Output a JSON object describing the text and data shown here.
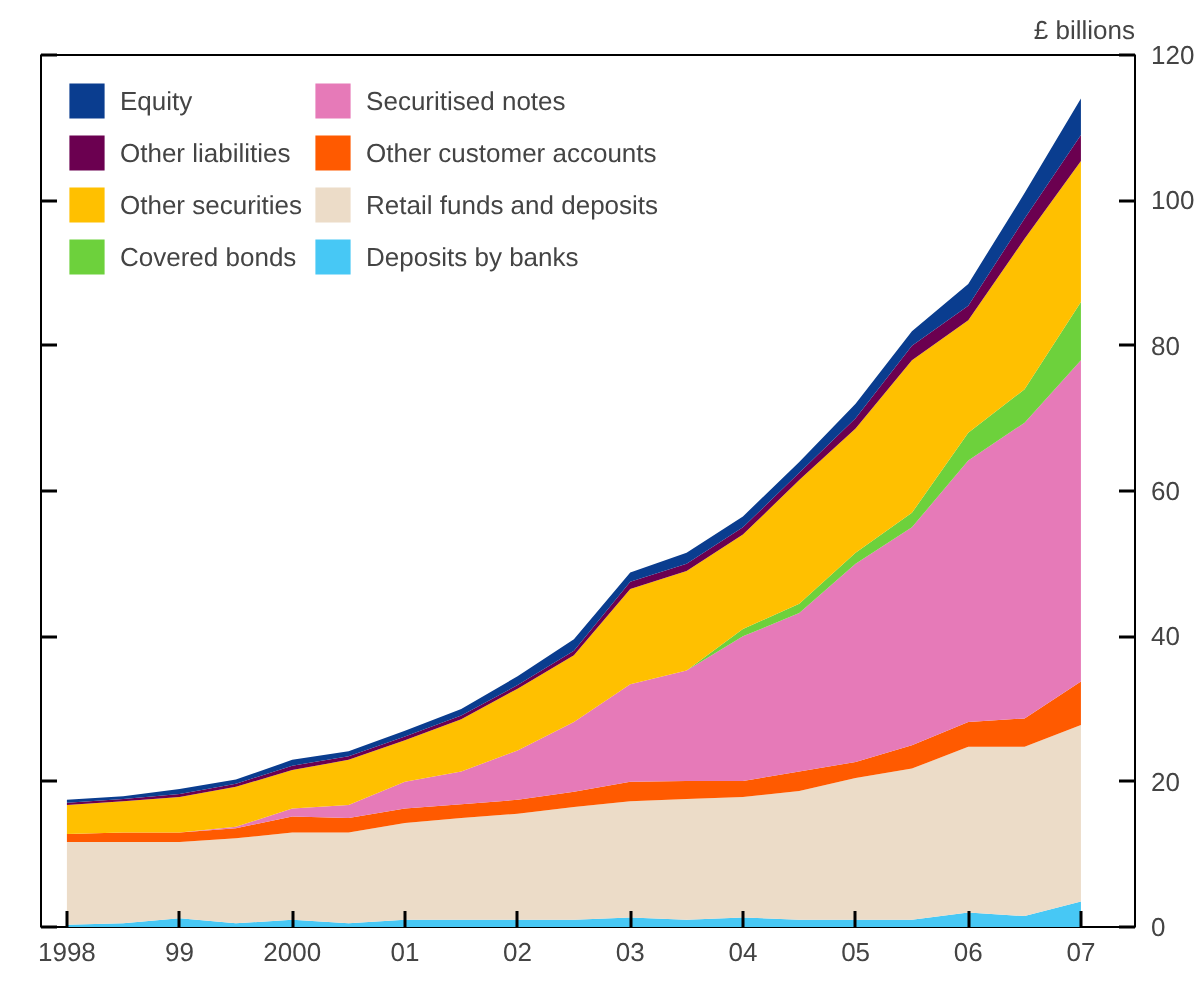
{
  "chart_data": {
    "type": "area",
    "stacked": true,
    "ylabel": "£ billions",
    "x": [
      1998,
      1998.5,
      1999,
      1999.5,
      2000,
      2000.5,
      2001,
      2001.5,
      2002,
      2002.5,
      2003,
      2003.5,
      2004,
      2004.5,
      2005,
      2005.5,
      2006,
      2006.5,
      2007
    ],
    "xlim": [
      1997.77,
      2007.48
    ],
    "ylim": [
      0,
      120
    ],
    "xticks": [
      1998,
      {
        "value": 1999,
        "label": "99"
      },
      2000,
      {
        "value": 2001,
        "label": "01"
      },
      {
        "value": 2002,
        "label": "02"
      },
      {
        "value": 2003,
        "label": "03"
      },
      {
        "value": 2004,
        "label": "04"
      },
      {
        "value": 2005,
        "label": "05"
      },
      {
        "value": 2006,
        "label": "06"
      },
      {
        "value": 2007,
        "label": "07"
      }
    ],
    "yticks": [
      0,
      20,
      40,
      60,
      80,
      100,
      120
    ],
    "grid": false,
    "legend": "top left",
    "series": [
      {
        "name": "Deposits by banks",
        "color": "#47c8f5",
        "values": [
          0.3,
          0.5,
          1.2,
          0.5,
          1.0,
          0.5,
          1.0,
          1.0,
          1.0,
          1.0,
          1.3,
          1.0,
          1.3,
          1.0,
          1.0,
          1.0,
          2.0,
          1.5,
          3.5
        ]
      },
      {
        "name": "Retail funds and deposits",
        "color": "#ecdcc8",
        "values": [
          11.4,
          11.2,
          10.5,
          11.7,
          12.0,
          12.5,
          13.3,
          14.0,
          14.6,
          15.5,
          16.0,
          16.6,
          16.6,
          17.7,
          19.5,
          20.8,
          22.8,
          23.3,
          24.3
        ]
      },
      {
        "name": "Other customer accounts",
        "color": "#ff5a00",
        "values": [
          1.1,
          1.3,
          1.3,
          1.4,
          2.2,
          2.0,
          2.0,
          1.9,
          1.9,
          2.1,
          2.7,
          2.5,
          2.2,
          2.7,
          2.2,
          3.2,
          3.4,
          3.9,
          6.0
        ]
      },
      {
        "name": "Securitised notes",
        "color": "#e67ab8",
        "values": [
          0,
          0,
          0,
          0.2,
          1.1,
          1.8,
          3.7,
          4.5,
          6.8,
          9.6,
          13.4,
          15.2,
          19.9,
          21.8,
          27.3,
          30.0,
          36.0,
          40.7,
          44.2
        ]
      },
      {
        "name": "Covered bonds",
        "color": "#6dd13c",
        "values": [
          0,
          0,
          0,
          0,
          0,
          0,
          0,
          0,
          0,
          0,
          0,
          0,
          1.0,
          1.3,
          1.5,
          2.0,
          3.8,
          4.6,
          8.0
        ]
      },
      {
        "name": "Other securities",
        "color": "#ffc000",
        "values": [
          4.0,
          4.3,
          4.9,
          5.5,
          5.3,
          6.2,
          5.7,
          7.2,
          8.5,
          9.2,
          13.1,
          13.7,
          13.0,
          17.0,
          17.1,
          21.0,
          15.5,
          20.7,
          19.4
        ]
      },
      {
        "name": "Other liabilities",
        "color": "#6b0050",
        "values": [
          0.3,
          0.3,
          0.4,
          0.4,
          0.6,
          0.5,
          0.5,
          0.5,
          0.5,
          0.6,
          1.0,
          1.0,
          1.0,
          1.0,
          1.4,
          2.0,
          2.0,
          2.8,
          3.6
        ]
      },
      {
        "name": "Equity",
        "color": "#0a3d8f",
        "values": [
          0.4,
          0.4,
          0.7,
          0.6,
          0.8,
          0.7,
          0.8,
          0.9,
          1.2,
          1.6,
          1.3,
          1.5,
          1.5,
          1.5,
          2.0,
          2.0,
          3.0,
          3.5,
          5.0
        ]
      }
    ]
  }
}
